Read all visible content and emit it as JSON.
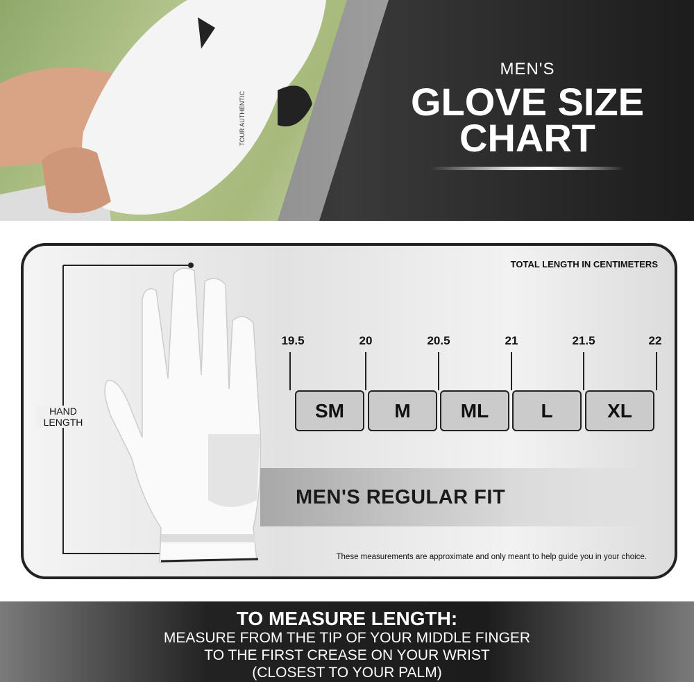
{
  "header": {
    "title_small": "MEN'S",
    "title_line1": "GLOVE SIZE",
    "title_line2": "CHART",
    "glove_print": "TOUR AUTHENTIC"
  },
  "chart": {
    "unit_label": "TOTAL LENGTH IN CENTIMETERS",
    "ticks": [
      "19.5",
      "20",
      "20.5",
      "21",
      "21.5",
      "22"
    ],
    "sizes": [
      "SM",
      "M",
      "ML",
      "L",
      "XL"
    ],
    "fit_label": "MEN'S REGULAR FIT",
    "hand_length_label": "HAND LENGTH",
    "disclaimer": "These measurements are approximate and only meant to help guide you in your choice."
  },
  "footer": {
    "heading": "TO MEASURE LENGTH:",
    "line1": "MEASURE FROM THE TIP OF YOUR MIDDLE FINGER",
    "line2": "TO THE FIRST CREASE ON YOUR WRIST",
    "line3": "(CLOSEST TO YOUR PALM)"
  }
}
